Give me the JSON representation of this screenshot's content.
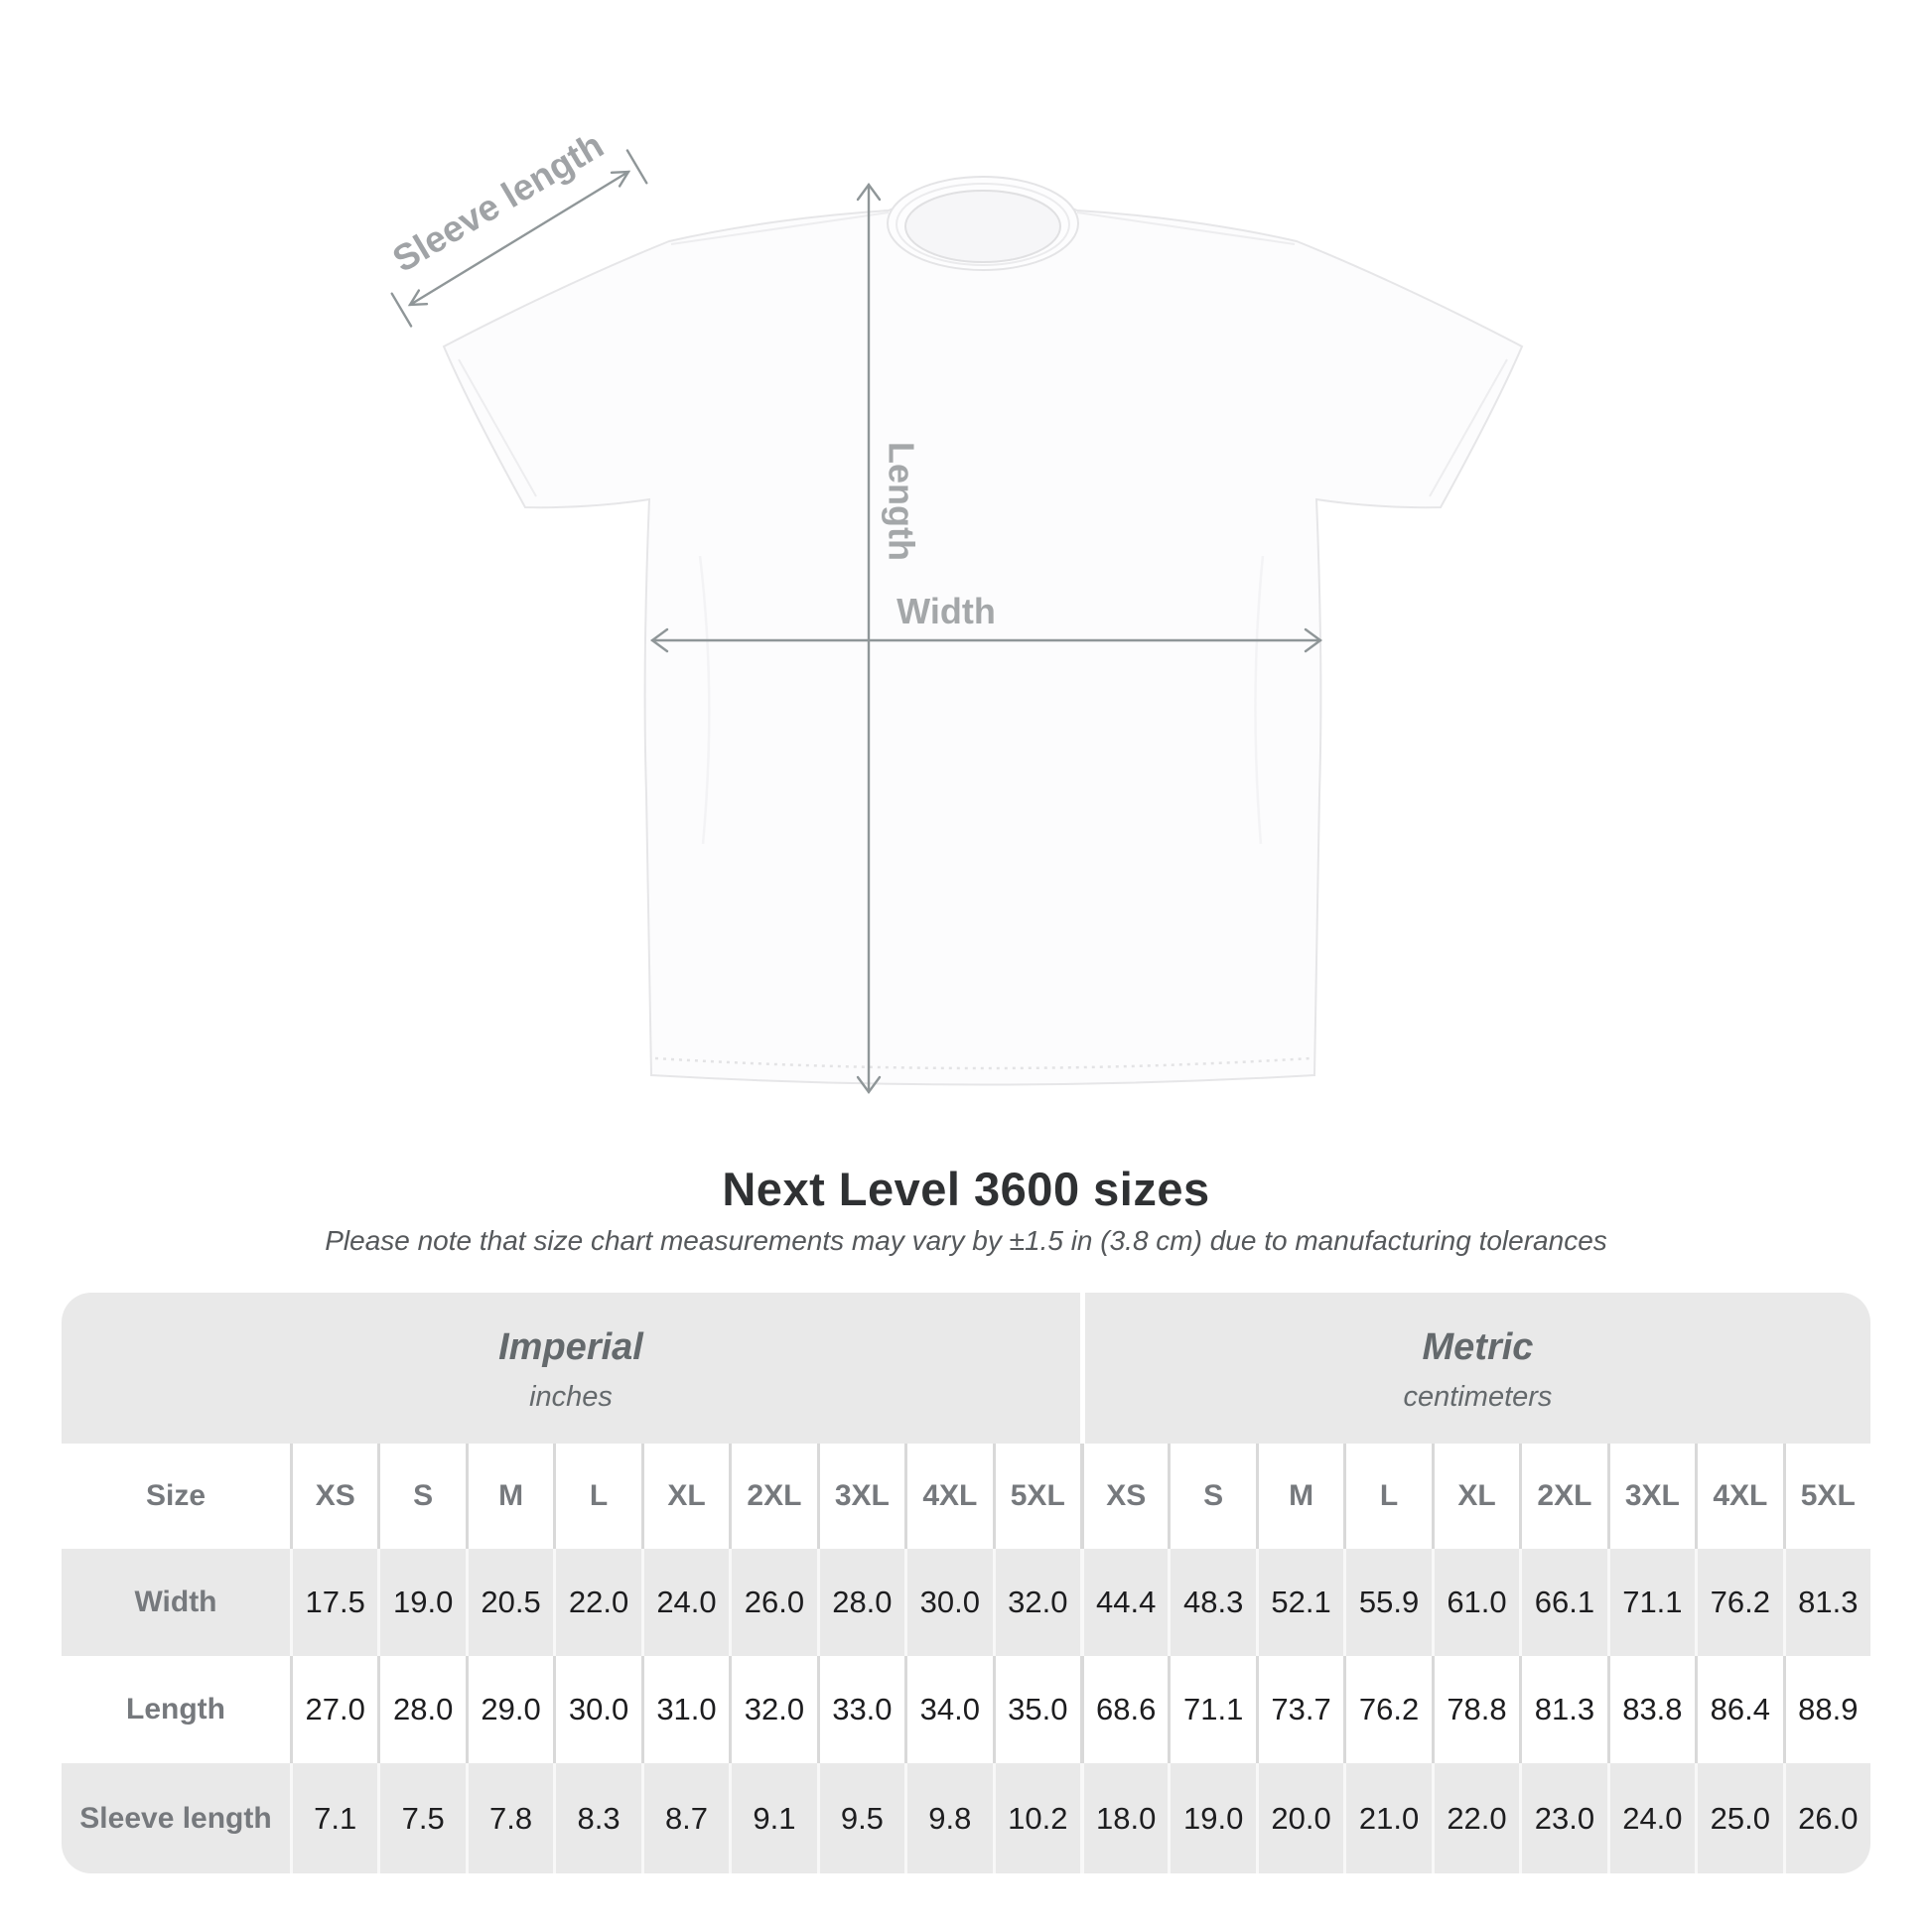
{
  "shirt": {
    "labels": {
      "sleeve": "Sleeve length",
      "length": "Length",
      "width": "Width"
    }
  },
  "heading": {
    "title": "Next Level 3600 sizes",
    "subtitle": "Please note that size chart measurements may vary by ±1.5 in (3.8 cm) due to manufacturing tolerances"
  },
  "table": {
    "size_label": "Size",
    "groups": [
      {
        "name": "Imperial",
        "unit": "inches"
      },
      {
        "name": "Metric",
        "unit": "centimeters"
      }
    ]
  },
  "chart_data": {
    "type": "table",
    "title": "Next Level 3600 sizes",
    "note": "Please note that size chart measurements may vary by ±1.5 in (3.8 cm) due to manufacturing tolerances",
    "column_groups": [
      {
        "label": "Imperial",
        "unit": "inches"
      },
      {
        "label": "Metric",
        "unit": "centimeters"
      }
    ],
    "columns": [
      "XS",
      "S",
      "M",
      "L",
      "XL",
      "2XL",
      "3XL",
      "4XL",
      "5XL"
    ],
    "rows": [
      {
        "label": "Width",
        "imperial": [
          17.5,
          19.0,
          20.5,
          22.0,
          24.0,
          26.0,
          28.0,
          30.0,
          32.0
        ],
        "metric": [
          44.4,
          48.3,
          52.1,
          55.9,
          61.0,
          66.1,
          71.1,
          76.2,
          81.3
        ]
      },
      {
        "label": "Length",
        "imperial": [
          27.0,
          28.0,
          29.0,
          30.0,
          31.0,
          32.0,
          33.0,
          34.0,
          35.0
        ],
        "metric": [
          68.6,
          71.1,
          73.7,
          76.2,
          78.8,
          81.3,
          83.8,
          86.4,
          88.9
        ]
      },
      {
        "label": "Sleeve length",
        "imperial": [
          7.1,
          7.5,
          7.8,
          8.3,
          8.7,
          9.1,
          9.5,
          9.8,
          10.2
        ],
        "metric": [
          18.0,
          19.0,
          20.0,
          21.0,
          22.0,
          23.0,
          24.0,
          25.0,
          26.0
        ]
      }
    ]
  },
  "colors": {
    "band_gray": "#e9e9e9",
    "value_text": "#1d1d1f",
    "header_text": "#76797d",
    "annotation_text": "#a0a3a6",
    "annotation_line": "#8f9698"
  }
}
